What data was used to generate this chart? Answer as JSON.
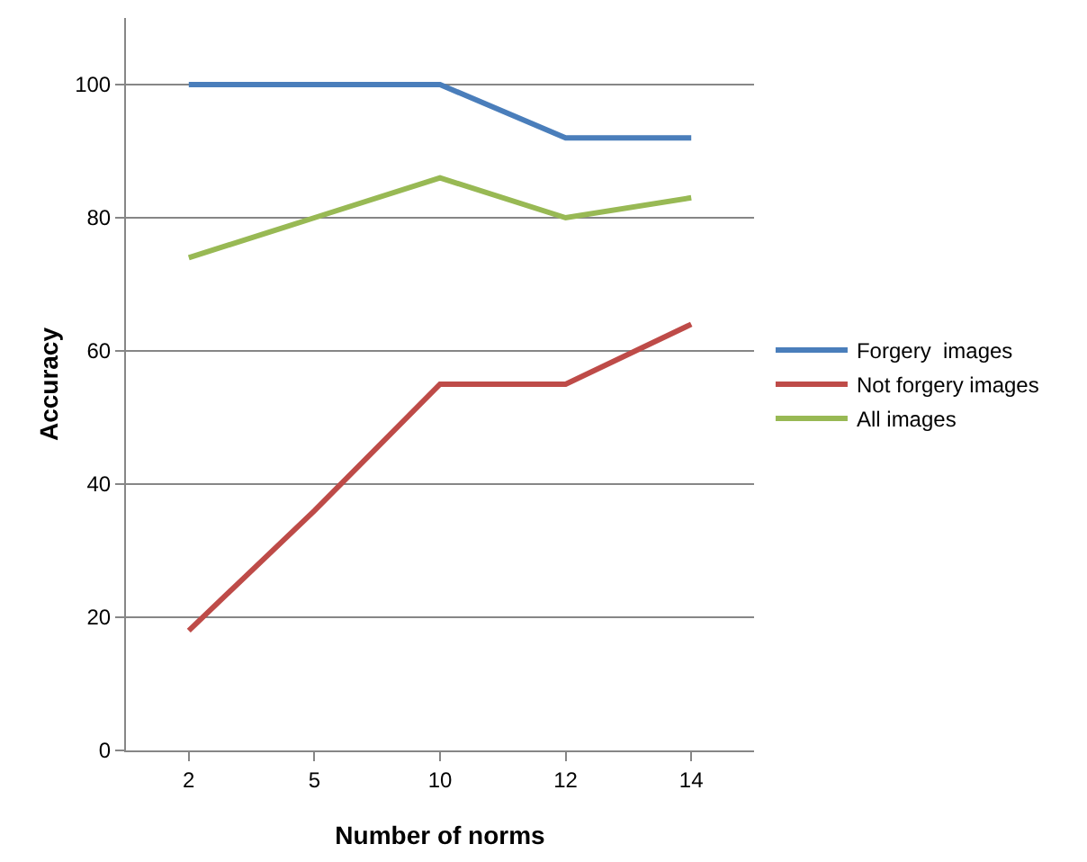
{
  "chart_data": {
    "type": "line",
    "xlabel": "Number of norms",
    "ylabel": "Accuracy",
    "categories": [
      "2",
      "5",
      "10",
      "12",
      "14"
    ],
    "series": [
      {
        "name": "Forgery  images",
        "color": "#4a7ebb",
        "values": [
          100,
          100,
          100,
          92,
          92
        ]
      },
      {
        "name": "Not forgery images",
        "color": "#be4b48",
        "values": [
          18,
          36,
          55,
          55,
          64
        ]
      },
      {
        "name": "All images",
        "color": "#98b954",
        "values": [
          74,
          80,
          86,
          80,
          83
        ]
      }
    ],
    "ylim": [
      0,
      110
    ],
    "yticks": [
      0,
      20,
      40,
      60,
      80,
      100
    ],
    "grid": "y",
    "legend": "right",
    "marker": "none",
    "line_style": "solid"
  }
}
